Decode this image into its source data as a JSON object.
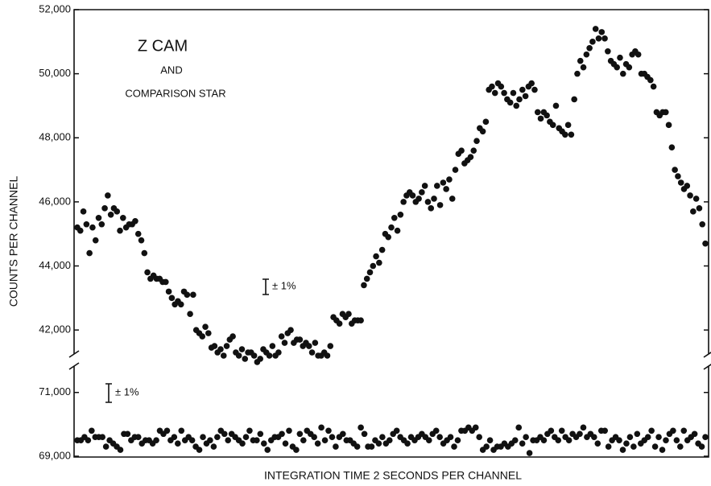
{
  "chart_data": [
    {
      "type": "scatter",
      "annotations": [
        "Z CAM",
        "AND",
        "COMPARISON STAR",
        "± 1%"
      ],
      "ylabel": "COUNTS PER CHANNEL",
      "color": "#111111",
      "ylim": [
        41250,
        52000
      ],
      "yticks": [
        {
          "value": 42000,
          "label": "42,000"
        },
        {
          "value": 44000,
          "label": "44,000"
        },
        {
          "value": 46000,
          "label": "46,000"
        },
        {
          "value": 48000,
          "label": "48,000"
        },
        {
          "value": 50000,
          "label": "50,000"
        },
        {
          "value": 52000,
          "label": "52,000"
        }
      ],
      "values": [
        45200,
        45100,
        45700,
        45300,
        44400,
        45200,
        44800,
        45500,
        45300,
        45800,
        46200,
        45600,
        45800,
        45700,
        45100,
        45500,
        45200,
        45300,
        45300,
        45400,
        45000,
        44800,
        44400,
        43800,
        43600,
        43700,
        43600,
        43600,
        43500,
        43500,
        43200,
        43000,
        42800,
        42900,
        42800,
        43200,
        43100,
        42500,
        43100,
        42000,
        41900,
        41800,
        42100,
        41900,
        41450,
        41500,
        41300,
        41400,
        41200,
        41500,
        41700,
        41800,
        41300,
        41200,
        41400,
        41100,
        41300,
        41300,
        41200,
        41000,
        41100,
        41400,
        41300,
        41200,
        41500,
        41200,
        41300,
        41800,
        41600,
        41900,
        42000,
        41600,
        41700,
        41700,
        41500,
        41600,
        41500,
        41300,
        41600,
        41200,
        41200,
        41300,
        41200,
        41500,
        42400,
        42300,
        42200,
        42500,
        42400,
        42500,
        42200,
        42300,
        42300,
        42300,
        43400,
        43600,
        43800,
        44000,
        44300,
        44100,
        44500,
        45000,
        44900,
        45200,
        45500,
        45100,
        45600,
        46000,
        46200,
        46300,
        46200,
        46000,
        46100,
        46300,
        46500,
        46000,
        45800,
        46100,
        46500,
        45900,
        46600,
        46400,
        46700,
        46100,
        47000,
        47500,
        47600,
        47200,
        47300,
        47400,
        47600,
        47900,
        48300,
        48200,
        48500,
        49500,
        49600,
        49400,
        49700,
        49600,
        49400,
        49200,
        49100,
        49400,
        49000,
        49200,
        49500,
        49300,
        49600,
        49700,
        49500,
        48800,
        48600,
        48800,
        48700,
        48500,
        48400,
        49000,
        48300,
        48200,
        48100,
        48400,
        48100,
        49200,
        50000,
        50400,
        50200,
        50600,
        50800,
        51000,
        51400,
        51100,
        51300,
        51100,
        50700,
        50400,
        50300,
        50200,
        50500,
        50000,
        50300,
        50200,
        50600,
        50700,
        50600,
        50000,
        50000,
        49900,
        49800,
        49600,
        48800,
        48700,
        48800,
        48800,
        48400,
        47700,
        47000,
        46800,
        46600,
        46400,
        46500,
        46200,
        45700,
        46100,
        45800,
        45300,
        44700
      ]
    },
    {
      "type": "scatter",
      "annotations": [
        "± 1%"
      ],
      "xlabel": "INTEGRATION TIME 2 SECONDS PER CHANNEL",
      "color": "#111111",
      "ylim": [
        69000,
        71700
      ],
      "yticks": [
        {
          "value": 69000,
          "label": "69,000"
        },
        {
          "value": 71000,
          "label": "71,000"
        }
      ],
      "values": [
        69500,
        69500,
        69600,
        69500,
        69800,
        69600,
        69600,
        69600,
        69300,
        69500,
        69400,
        69300,
        69200,
        69700,
        69700,
        69500,
        69600,
        69600,
        69400,
        69500,
        69500,
        69400,
        69500,
        69800,
        69700,
        69800,
        69500,
        69600,
        69400,
        69800,
        69500,
        69600,
        69500,
        69300,
        69200,
        69600,
        69400,
        69500,
        69300,
        69600,
        69800,
        69700,
        69500,
        69700,
        69600,
        69500,
        69400,
        69600,
        69800,
        69500,
        69500,
        69700,
        69400,
        69200,
        69500,
        69600,
        69600,
        69700,
        69400,
        69800,
        69300,
        69200,
        69700,
        69500,
        69800,
        69700,
        69600,
        69400,
        69900,
        69500,
        69800,
        69600,
        69300,
        69600,
        69700,
        69500,
        69500,
        69400,
        69300,
        69900,
        69700,
        69300,
        69300,
        69500,
        69400,
        69600,
        69400,
        69500,
        69700,
        69800,
        69600,
        69500,
        69400,
        69600,
        69500,
        69600,
        69700,
        69600,
        69500,
        69700,
        69800,
        69600,
        69400,
        69500,
        69600,
        69300,
        69500,
        69800,
        69800,
        69900,
        69800,
        69900,
        69600,
        69200,
        69300,
        69500,
        69200,
        69300,
        69300,
        69400,
        69300,
        69400,
        69500,
        69900,
        69400,
        69600,
        69100,
        69500,
        69500,
        69600,
        69500,
        69700,
        69800,
        69600,
        69500,
        69800,
        69600,
        69500,
        69700,
        69600,
        69700,
        69900,
        69600,
        69700,
        69600,
        69400,
        69800,
        69800,
        69300,
        69500,
        69600,
        69500,
        69200,
        69400,
        69600,
        69300,
        69700,
        69400,
        69500,
        69600,
        69800,
        69300,
        69600,
        69200,
        69500,
        69700,
        69800,
        69500,
        69300,
        69800,
        69500,
        69600,
        69700,
        69400,
        69300,
        69600
      ]
    }
  ]
}
